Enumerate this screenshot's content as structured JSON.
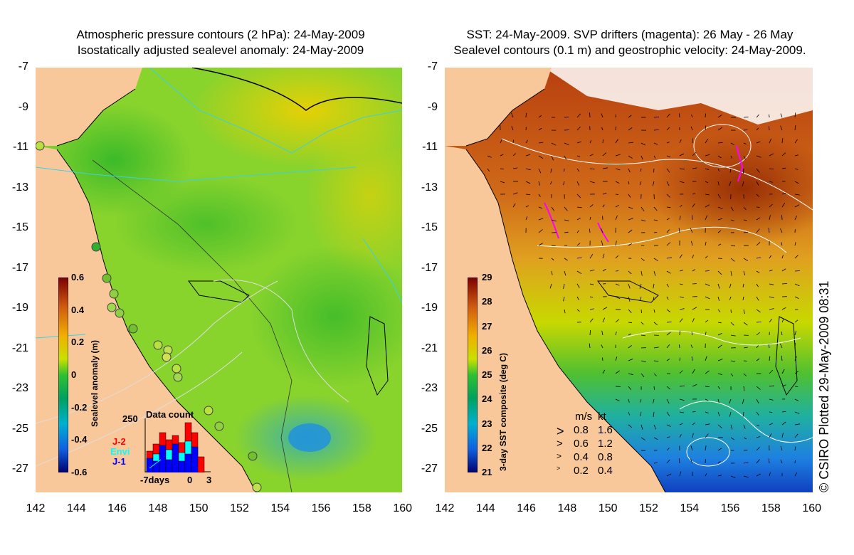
{
  "left_panel": {
    "title_line1": "Atmospheric pressure contours (2 hPa): 24-May-2009",
    "title_line2": "Isostatically adjusted sealevel anomaly: 24-May-2009",
    "colorbar": {
      "label": "Sealevel anomaly (m)",
      "ticks": [
        "0.6",
        "0.4",
        "0.2",
        "0",
        "-0.2",
        "-0.4",
        "-0.6"
      ]
    },
    "data_count": {
      "title": "Data count",
      "max": "250",
      "legend": [
        "J-2",
        "Envi",
        "J-1"
      ],
      "legend_colors": [
        "#ff0000",
        "#00ffff",
        "#0000ff"
      ],
      "x_labels": [
        "-7days",
        "0",
        "3"
      ]
    }
  },
  "right_panel": {
    "title_line1": "SST: 24-May-2009. SVP drifters (magenta): 26 May - 26 May",
    "title_line2": "Sealevel contours (0.1 m) and geostrophic velocity: 24-May-2009.",
    "colorbar": {
      "label": "3-day SST composite (deg C)",
      "ticks": [
        "29",
        "28",
        "27",
        "26",
        "25",
        "24",
        "23",
        "22",
        "21"
      ]
    },
    "velocity_legend": {
      "header_ms": "m/s",
      "header_kt": "kt",
      "rows": [
        {
          "ms": "0.8",
          "kt": "1.6"
        },
        {
          "ms": "0.6",
          "kt": "1.2"
        },
        {
          "ms": "0.4",
          "kt": "0.8"
        },
        {
          "ms": "0.2",
          "kt": "0.4"
        }
      ]
    }
  },
  "axes": {
    "y_ticks": [
      "-7",
      "-9",
      "-11",
      "-13",
      "-15",
      "-17",
      "-19",
      "-21",
      "-23",
      "-25",
      "-27"
    ],
    "x_ticks": [
      "142",
      "144",
      "146",
      "148",
      "150",
      "152",
      "154",
      "156",
      "158",
      "160"
    ]
  },
  "credit": "© CSIRO Plotted 29-May-2009 08:31",
  "colors": {
    "land": "#f9c89a",
    "sealevel_mid": "#7fd62a",
    "sst_warm": "#d9721a",
    "sst_cool": "#1e8fdc",
    "drifter": "#ff00ff"
  }
}
